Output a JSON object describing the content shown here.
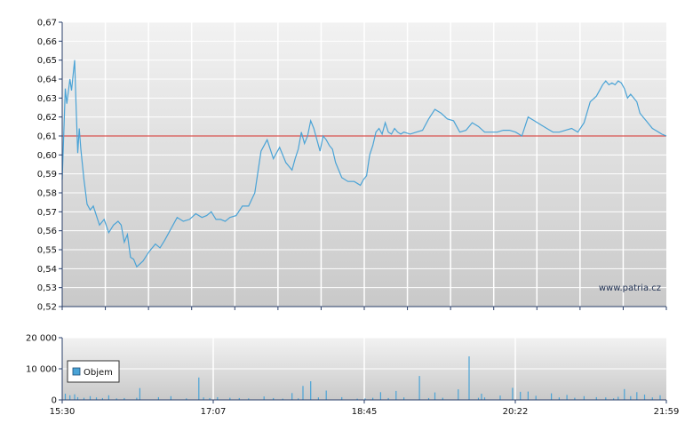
{
  "colors": {
    "price_line": "#4aa3d6",
    "reference_line": "#d9534f",
    "volume_bar": "#4aa3d6",
    "plot_bg_top": "#f2f2f2",
    "plot_bg_bottom": "#c9c9c9",
    "grid": "#ffffff",
    "axis": "#2a3f6a"
  },
  "watermark": "www.patria.cz",
  "legend": {
    "label": "Objem"
  },
  "chart_data": [
    {
      "type": "line",
      "x_tick_labels": [
        "15:30",
        "17:07",
        "18:45",
        "20:22",
        "21:59"
      ],
      "y_tick_labels": [
        "0,52",
        "0,53",
        "0,54",
        "0,55",
        "0,56",
        "0,57",
        "0,58",
        "0,59",
        "0,60",
        "0,61",
        "0,62",
        "0,63",
        "0,64",
        "0,65",
        "0,66",
        "0,67"
      ],
      "ylim": [
        0.52,
        0.67
      ],
      "x_range_minutes": [
        0,
        389
      ],
      "reference_value": 0.61,
      "series": [
        {
          "x": [
            0,
            2,
            3,
            5,
            6,
            8,
            9,
            10,
            11,
            12,
            14,
            16,
            18,
            20,
            24,
            27,
            30,
            33,
            36,
            38,
            40,
            42,
            44,
            46,
            48,
            52,
            56,
            60,
            63,
            66,
            68,
            70,
            74,
            78,
            82,
            86,
            90,
            93,
            96,
            99,
            102,
            105,
            108,
            112,
            116,
            120,
            124,
            128,
            132,
            136,
            140,
            144,
            148,
            150,
            152,
            154,
            156,
            158,
            160,
            162,
            164,
            166,
            168,
            170,
            172,
            174,
            176,
            178,
            180,
            184,
            188,
            190,
            192,
            194,
            196,
            198,
            200,
            202,
            204,
            206,
            208,
            210,
            212,
            214,
            216,
            218,
            220,
            224,
            228,
            232,
            236,
            240,
            244,
            248,
            252,
            256,
            260,
            264,
            268,
            272,
            276,
            280,
            284,
            288,
            292,
            296,
            300,
            304,
            308,
            312,
            316,
            320,
            324,
            328,
            332,
            336,
            340,
            344,
            348,
            350,
            352,
            354,
            356,
            358,
            360,
            362,
            364,
            366,
            368,
            370,
            372,
            374,
            376,
            378,
            380,
            382,
            384,
            386,
            389
          ],
          "y": [
            0.587,
            0.635,
            0.627,
            0.64,
            0.634,
            0.65,
            0.625,
            0.601,
            0.614,
            0.603,
            0.587,
            0.574,
            0.571,
            0.573,
            0.563,
            0.566,
            0.559,
            0.563,
            0.565,
            0.563,
            0.554,
            0.558,
            0.546,
            0.545,
            0.541,
            0.544,
            0.549,
            0.553,
            0.551,
            0.555,
            0.558,
            0.561,
            0.567,
            0.565,
            0.566,
            0.569,
            0.567,
            0.568,
            0.57,
            0.566,
            0.566,
            0.565,
            0.567,
            0.568,
            0.573,
            0.573,
            0.58,
            0.602,
            0.608,
            0.598,
            0.604,
            0.596,
            0.592,
            0.598,
            0.603,
            0.612,
            0.606,
            0.61,
            0.618,
            0.614,
            0.608,
            0.602,
            0.61,
            0.608,
            0.605,
            0.603,
            0.596,
            0.592,
            0.588,
            0.586,
            0.586,
            0.585,
            0.584,
            0.587,
            0.589,
            0.6,
            0.605,
            0.612,
            0.614,
            0.611,
            0.617,
            0.612,
            0.611,
            0.614,
            0.612,
            0.611,
            0.612,
            0.611,
            0.612,
            0.613,
            0.619,
            0.624,
            0.622,
            0.619,
            0.618,
            0.612,
            0.613,
            0.617,
            0.615,
            0.612,
            0.612,
            0.612,
            0.613,
            0.613,
            0.612,
            0.61,
            0.62,
            0.618,
            0.616,
            0.614,
            0.612,
            0.612,
            0.613,
            0.614,
            0.612,
            0.617,
            0.628,
            0.631,
            0.637,
            0.639,
            0.637,
            0.638,
            0.637,
            0.639,
            0.638,
            0.635,
            0.63,
            0.632,
            0.63,
            0.628,
            0.622,
            0.62,
            0.618,
            0.616,
            0.614,
            0.613,
            0.612,
            0.611,
            0.61
          ]
        }
      ]
    },
    {
      "type": "bar",
      "y_tick_labels": [
        "0",
        "10 000",
        "20 000"
      ],
      "ylim": [
        0,
        20000
      ],
      "series": [
        {
          "name": "Objem",
          "x": [
            2,
            5,
            8,
            10,
            14,
            18,
            22,
            26,
            30,
            35,
            40,
            48,
            50,
            62,
            70,
            80,
            88,
            91,
            95,
            100,
            108,
            114,
            120,
            130,
            136,
            142,
            148,
            152,
            155,
            160,
            165,
            170,
            180,
            190,
            195,
            200,
            205,
            210,
            215,
            220,
            230,
            236,
            240,
            245,
            255,
            262,
            268,
            270,
            272,
            282,
            290,
            295,
            300,
            305,
            315,
            320,
            325,
            330,
            336,
            344,
            350,
            355,
            358,
            362,
            366,
            370,
            375,
            380,
            385
          ],
          "values": [
            2000,
            1500,
            1800,
            900,
            700,
            1200,
            800,
            600,
            1500,
            500,
            600,
            700,
            3800,
            900,
            1200,
            500,
            7200,
            800,
            600,
            900,
            700,
            600,
            500,
            1100,
            600,
            400,
            2200,
            500,
            4500,
            6000,
            800,
            3000,
            900,
            400,
            500,
            700,
            2500,
            600,
            2900,
            800,
            7700,
            600,
            2400,
            700,
            3400,
            14000,
            700,
            2000,
            800,
            1400,
            3900,
            2600,
            2700,
            1300,
            2100,
            800,
            1600,
            700,
            1200,
            900,
            800,
            500,
            1000,
            3500,
            1200,
            2500,
            1700,
            800,
            1500
          ]
        }
      ]
    }
  ]
}
